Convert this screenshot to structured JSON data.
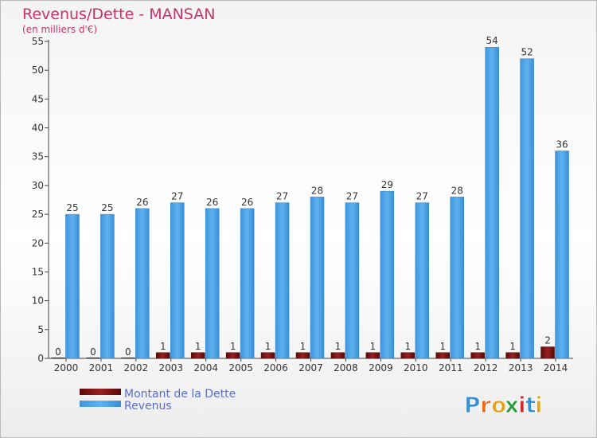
{
  "chart_data": {
    "type": "bar",
    "title": "Revenus/Dette - MANSAN",
    "subtitle": "(en milliers d'€)",
    "categories": [
      "2000",
      "2001",
      "2002",
      "2003",
      "2004",
      "2005",
      "2006",
      "2007",
      "2008",
      "2009",
      "2010",
      "2011",
      "2012",
      "2013",
      "2014"
    ],
    "series": [
      {
        "name": "Montant de la Dette",
        "values": [
          0,
          0,
          0,
          1,
          1,
          1,
          1,
          1,
          1,
          1,
          1,
          1,
          1,
          1,
          2
        ]
      },
      {
        "name": "Revenus",
        "values": [
          25,
          25,
          26,
          27,
          26,
          26,
          27,
          28,
          27,
          29,
          27,
          28,
          54,
          52,
          36
        ]
      }
    ],
    "ylim": [
      0,
      55
    ],
    "yticks": [
      0,
      5,
      10,
      15,
      20,
      25,
      30,
      35,
      40,
      45,
      50,
      55
    ],
    "grid": false,
    "legend_position": "bottom-left",
    "colors": {
      "dette": "#7a1212",
      "revenus": "#4aa3e6",
      "title": "#c8326a",
      "legend_text": "#5a6ed0"
    }
  },
  "logo": {
    "text": "Proxiti",
    "letters": [
      "P",
      "r",
      "o",
      "x",
      "i",
      "t",
      "i"
    ],
    "colors": [
      "#3a8fd6",
      "#e86a1a",
      "#e8a21a",
      "#2a9a3a",
      "#d42a2a",
      "#3a8fd6",
      "#e8a21a"
    ]
  }
}
